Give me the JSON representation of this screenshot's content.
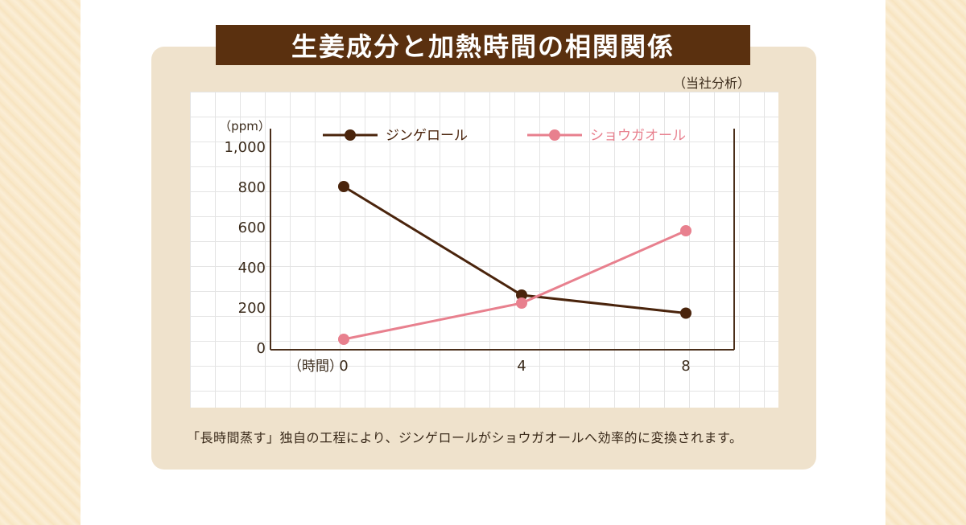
{
  "title": "生姜成分と加熱時間の相関関係",
  "source_note": "（当社分析）",
  "caption": "「長時間蒸す」独自の工程により、ジンゲロールがショウガオールへ効率的に変換されます。",
  "colors": {
    "title_bg": "#5a300f",
    "gingerol": "#4a240c",
    "shogaol": "#e8808e",
    "panel_bg": "#efe2cc"
  },
  "chart_data": {
    "type": "line",
    "y_unit_label": "（ppm）",
    "x_unit_label": "（時間）",
    "x": [
      0,
      4,
      8
    ],
    "x_tick_labels": [
      "0",
      "4",
      "8"
    ],
    "y_tick_labels": [
      "0",
      "200",
      "400",
      "600",
      "800",
      "1,000"
    ],
    "ylim": [
      0,
      1000
    ],
    "grid": true,
    "legend_placement": "top",
    "series": [
      {
        "name": "ジンゲロール",
        "values": [
          800,
          260,
          170
        ],
        "color": "#4a240c"
      },
      {
        "name": "ショウガオール",
        "values": [
          40,
          220,
          580
        ],
        "color": "#e8808e"
      }
    ]
  }
}
